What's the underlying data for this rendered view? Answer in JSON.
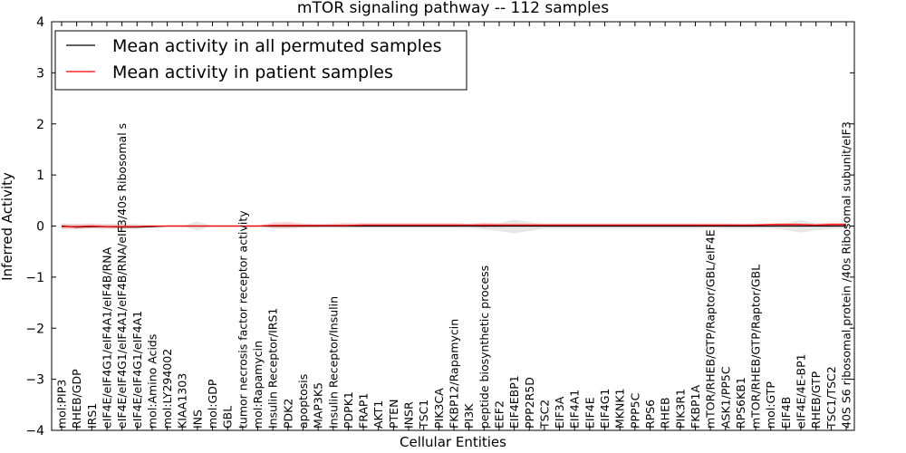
{
  "chart_data": {
    "type": "line",
    "title": "mTOR signaling pathway -- 112 samples",
    "xlabel": "Cellular Entities",
    "ylabel": "Inferred Activity",
    "ylim": [
      -4,
      4
    ],
    "yticks": [
      -4,
      -3,
      -2,
      -1,
      0,
      1,
      2,
      3,
      4
    ],
    "legend_position": "top-left",
    "categories": [
      "mol:PIP3",
      "RHEB/GDP",
      "IRS1",
      "eIF4E/eIF4G1/eIF4A1/eIF4B/RNA",
      "eIF4E/eIF4G1/eIF4A1/eIF4B/RNA/eIF3/40s Ribosomal s",
      "eIF4E/eIF4G1/eIF4A1",
      "mol:Amino Acids",
      "mol:LY294002",
      "KIAA1303",
      "INS",
      "mol:GDP",
      "GBL",
      "tumor necrosis factor receptor activity",
      "mol:Rapamycin",
      "Insulin Receptor/IRS1",
      "PDK2",
      "apoptosis",
      "MAP3K5",
      "Insulin Receptor/Insulin",
      "PDPK1",
      "FRAP1",
      "AKT1",
      "PTEN",
      "INSR",
      "TSC1",
      "PIK3CA",
      "FKBP12/Rapamycin",
      "PI3K",
      "peptide biosynthetic process",
      "EEF2",
      "EIF4EBP1",
      "PPP2R5D",
      "TSC2",
      "EIF3A",
      "EIF4A1",
      "EIF4E",
      "EIF4G1",
      "MKNK1",
      "PPP5C",
      "RPS6",
      "RHEB",
      "PIK3R1",
      "FKBP1A",
      "mTOR/RHEB/GTP/Raptor/GBL/eIF4E",
      "ASK1/PP5C",
      "RPS6KB1",
      "mTOR/RHEB/GTP/Raptor/GBL",
      "mol:GTP",
      "EIF4B",
      "eIF4E/4E-BP1",
      "RHEB/GTP",
      "TSC1/TSC2",
      "40S S6 ribosomal protein /40s Ribosomal subunit/eIF3"
    ],
    "series": [
      {
        "name": "Mean activity in all permuted samples",
        "color": "#000000",
        "values": [
          0.0,
          -0.02,
          -0.01,
          -0.01,
          -0.02,
          -0.02,
          -0.01,
          0.0,
          0.0,
          0.0,
          0.0,
          0.0,
          0.0,
          0.0,
          0.0,
          0.0,
          0.0,
          0.0,
          0.0,
          0.0,
          0.0,
          0.0,
          0.0,
          0.0,
          0.0,
          0.0,
          0.0,
          0.0,
          0.0,
          0.0,
          0.0,
          0.0,
          0.0,
          0.0,
          0.0,
          0.0,
          0.0,
          0.0,
          0.0,
          0.0,
          0.0,
          0.0,
          0.0,
          0.0,
          0.0,
          0.0,
          0.0,
          0.0,
          0.0,
          0.0,
          0.0,
          0.0,
          0.0
        ],
        "band_upper": [
          0.05,
          0.04,
          0.03,
          0.04,
          0.04,
          0.04,
          0.02,
          0.0,
          0.0,
          0.09,
          0.0,
          0.0,
          0.0,
          0.0,
          0.03,
          0.04,
          0.03,
          0.03,
          0.03,
          0.04,
          0.04,
          0.04,
          0.04,
          0.04,
          0.04,
          0.04,
          0.04,
          0.04,
          0.04,
          0.06,
          0.13,
          0.08,
          0.04,
          0.04,
          0.04,
          0.04,
          0.04,
          0.04,
          0.04,
          0.04,
          0.04,
          0.04,
          0.04,
          0.03,
          0.04,
          0.03,
          0.04,
          0.04,
          0.06,
          0.12,
          0.05,
          0.04,
          0.04
        ],
        "band_lower": [
          -0.05,
          -0.06,
          -0.05,
          -0.06,
          -0.06,
          -0.06,
          -0.03,
          0.0,
          0.0,
          -0.09,
          0.0,
          0.0,
          0.0,
          0.0,
          -0.03,
          -0.04,
          -0.03,
          -0.03,
          -0.03,
          -0.04,
          -0.04,
          -0.04,
          -0.04,
          -0.04,
          -0.04,
          -0.04,
          -0.04,
          -0.04,
          -0.06,
          -0.1,
          -0.14,
          -0.1,
          -0.05,
          -0.05,
          -0.05,
          -0.05,
          -0.05,
          -0.05,
          -0.05,
          -0.05,
          -0.05,
          -0.05,
          -0.05,
          -0.03,
          -0.05,
          -0.05,
          -0.05,
          -0.05,
          -0.08,
          -0.13,
          -0.08,
          -0.06,
          -0.05
        ]
      },
      {
        "name": "Mean activity in patient samples",
        "color": "#ff0000",
        "values": [
          -0.01,
          -0.01,
          0.0,
          -0.01,
          -0.01,
          -0.01,
          0.0,
          0.0,
          0.0,
          0.0,
          0.0,
          0.0,
          0.0,
          0.0,
          0.01,
          0.01,
          0.01,
          0.01,
          0.01,
          0.01,
          0.02,
          0.02,
          0.02,
          0.02,
          0.02,
          0.02,
          0.02,
          0.02,
          0.02,
          0.02,
          0.02,
          0.02,
          0.02,
          0.02,
          0.02,
          0.02,
          0.02,
          0.02,
          0.02,
          0.02,
          0.02,
          0.02,
          0.02,
          0.02,
          0.02,
          0.02,
          0.02,
          0.03,
          0.03,
          0.03,
          0.02,
          0.03,
          0.03
        ],
        "band_upper": [
          0.04,
          0.03,
          0.05,
          0.03,
          0.03,
          0.02,
          0.01,
          0.0,
          0.0,
          0.0,
          0.0,
          0.0,
          0.0,
          0.0,
          0.07,
          0.08,
          0.05,
          0.04,
          0.05,
          0.06,
          0.06,
          0.06,
          0.06,
          0.06,
          0.06,
          0.06,
          0.06,
          0.04,
          0.07,
          0.05,
          0.05,
          0.05,
          0.05,
          0.05,
          0.05,
          0.05,
          0.05,
          0.05,
          0.05,
          0.05,
          0.05,
          0.05,
          0.05,
          0.05,
          0.05,
          0.04,
          0.05,
          0.05,
          0.06,
          0.05,
          0.05,
          0.07,
          0.06
        ],
        "band_lower": [
          -0.06,
          -0.06,
          -0.05,
          -0.05,
          -0.05,
          -0.04,
          -0.01,
          0.0,
          0.0,
          0.0,
          0.0,
          0.0,
          0.0,
          0.0,
          -0.05,
          -0.05,
          -0.03,
          -0.02,
          -0.02,
          -0.02,
          -0.02,
          -0.02,
          -0.02,
          -0.02,
          -0.02,
          -0.02,
          -0.02,
          -0.01,
          -0.03,
          -0.02,
          -0.02,
          -0.02,
          -0.02,
          -0.02,
          -0.02,
          -0.02,
          -0.02,
          -0.02,
          -0.02,
          -0.02,
          -0.02,
          -0.02,
          -0.02,
          -0.02,
          -0.02,
          -0.02,
          -0.02,
          -0.01,
          -0.01,
          -0.01,
          -0.01,
          -0.01,
          -0.01
        ]
      }
    ]
  }
}
